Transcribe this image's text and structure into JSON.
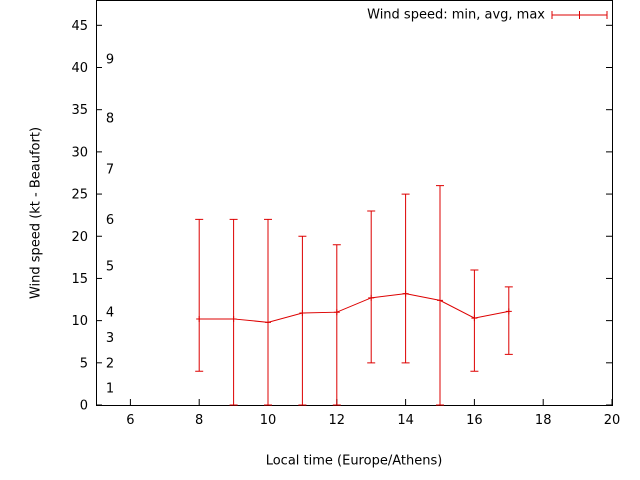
{
  "colors": {
    "series": "#dd0000",
    "axis": "#000000",
    "background": "#ffffff"
  },
  "chart_data": {
    "type": "line",
    "title": "",
    "xlabel": "Local time (Europe/Athens)",
    "ylabel": "Wind speed (kt - Beaufort)",
    "legend": {
      "label": "Wind speed: min, avg, max",
      "position": "top-right"
    },
    "grid": false,
    "x": [
      8,
      9,
      10,
      11,
      12,
      13,
      14,
      15,
      16,
      17
    ],
    "series": [
      {
        "name": "min",
        "values": [
          4,
          0,
          0,
          0,
          0,
          5,
          5,
          0,
          4,
          6
        ]
      },
      {
        "name": "avg",
        "values": [
          10.2,
          10.2,
          9.8,
          10.9,
          11,
          12.7,
          13.2,
          12.4,
          10.3,
          11.1
        ]
      },
      {
        "name": "max",
        "values": [
          22,
          22,
          22,
          20,
          19,
          23,
          25,
          26,
          16,
          14
        ]
      }
    ],
    "xlim": [
      5,
      20
    ],
    "ylim": [
      0,
      48
    ],
    "xticks": [
      6,
      8,
      10,
      12,
      14,
      16,
      18,
      20
    ],
    "yticks": [
      0,
      5,
      10,
      15,
      20,
      25,
      30,
      35,
      40,
      45
    ],
    "beaufort_scale": [
      {
        "label": "1",
        "kt": 2
      },
      {
        "label": "2",
        "kt": 5
      },
      {
        "label": "3",
        "kt": 8
      },
      {
        "label": "4",
        "kt": 11
      },
      {
        "label": "5",
        "kt": 16.5
      },
      {
        "label": "6",
        "kt": 22
      },
      {
        "label": "7",
        "kt": 28
      },
      {
        "label": "8",
        "kt": 34
      },
      {
        "label": "9",
        "kt": 41
      }
    ]
  }
}
